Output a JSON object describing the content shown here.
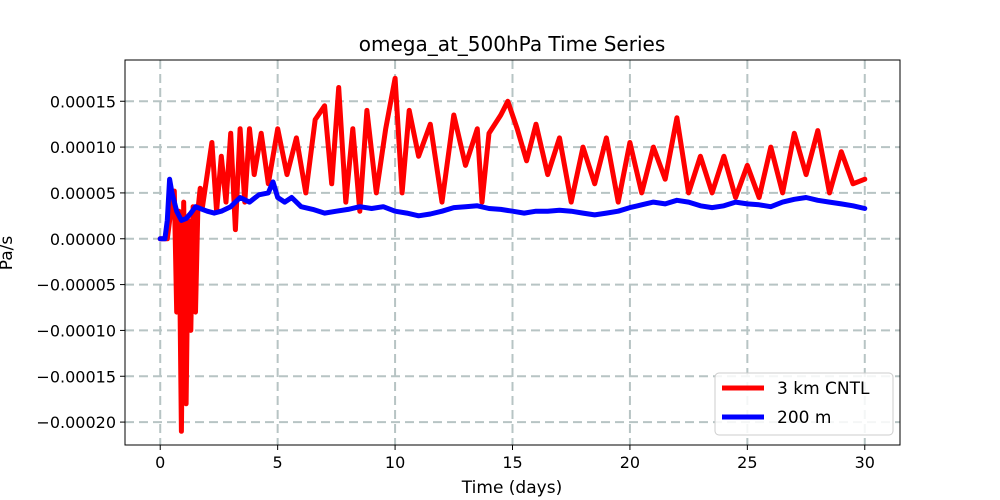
{
  "chart_data": {
    "type": "line",
    "title": "omega_at_500hPa Time Series",
    "xlabel": "Time (days)",
    "ylabel": "Pa/s",
    "xlim": [
      -1.5,
      31.5
    ],
    "ylim": [
      -0.000225,
      0.000195
    ],
    "grid": true,
    "legend_position": "lower-right",
    "x_ticks": [
      0,
      5,
      10,
      15,
      20,
      25,
      30
    ],
    "x_tick_labels": [
      "0",
      "5",
      "10",
      "15",
      "20",
      "25",
      "30"
    ],
    "y_ticks": [
      0.00015,
      0.0001,
      5e-05,
      0.0,
      -5e-05,
      -0.0001,
      -0.00015,
      -0.0002
    ],
    "y_tick_labels": [
      "0.00015",
      "0.00010",
      "0.00005",
      "0.00000",
      "−0.00005",
      "−0.00010",
      "−0.00015",
      "−0.00020"
    ],
    "series": [
      {
        "name": "3 km CNTL",
        "color": "#ff0000",
        "x": [
          0,
          0.3,
          0.5,
          0.6,
          0.7,
          0.8,
          0.9,
          1.0,
          1.1,
          1.2,
          1.3,
          1.4,
          1.5,
          1.6,
          1.7,
          1.8,
          2.0,
          2.2,
          2.4,
          2.6,
          2.8,
          3.0,
          3.2,
          3.4,
          3.6,
          3.8,
          4.0,
          4.3,
          4.6,
          5.0,
          5.4,
          5.8,
          6.2,
          6.6,
          7.0,
          7.3,
          7.6,
          7.9,
          8.2,
          8.5,
          8.8,
          9.2,
          9.6,
          10.0,
          10.3,
          10.6,
          11.0,
          11.5,
          12.0,
          12.5,
          13.0,
          13.5,
          13.7,
          14.0,
          14.5,
          14.8,
          15.2,
          15.6,
          16.0,
          16.5,
          17.0,
          17.5,
          18.0,
          18.5,
          19.0,
          19.5,
          20.0,
          20.5,
          21.0,
          21.5,
          22.0,
          22.5,
          23.0,
          23.5,
          24.0,
          24.5,
          25.0,
          25.5,
          26.0,
          26.5,
          27.0,
          27.5,
          28.0,
          28.5,
          29.0,
          29.5,
          30.0
        ],
        "values": [
          0.0,
          0.0,
          4e-05,
          5.2e-05,
          -8e-05,
          3e-05,
          -0.00021,
          4e-05,
          -0.00018,
          2e-05,
          -0.0001,
          3.5e-05,
          -8e-05,
          3e-05,
          5.5e-05,
          3.5e-05,
          7e-05,
          0.000105,
          3e-05,
          9e-05,
          4e-05,
          0.000115,
          1e-05,
          0.00012,
          4e-05,
          0.00012,
          7e-05,
          0.000115,
          6e-05,
          0.00012,
          7e-05,
          0.00011,
          5e-05,
          0.00013,
          0.000145,
          6e-05,
          0.000165,
          4e-05,
          0.00012,
          3e-05,
          0.00014,
          5e-05,
          0.00012,
          0.000175,
          5e-05,
          0.00014,
          9e-05,
          0.000125,
          4e-05,
          0.000135,
          8e-05,
          0.00012,
          4e-05,
          0.000115,
          0.000135,
          0.00015,
          0.00012,
          8.5e-05,
          0.000125,
          7e-05,
          0.00011,
          4e-05,
          0.0001,
          6e-05,
          0.00011,
          4e-05,
          0.000105,
          5e-05,
          0.0001,
          6.5e-05,
          0.000132,
          5e-05,
          9e-05,
          5e-05,
          9e-05,
          4.5e-05,
          8e-05,
          4.5e-05,
          0.0001,
          5e-05,
          0.000115,
          7e-05,
          0.000118,
          5e-05,
          9.5e-05,
          6e-05,
          6.5e-05
        ]
      },
      {
        "name": "200 m",
        "color": "#0000ff",
        "x": [
          0,
          0.2,
          0.3,
          0.4,
          0.5,
          0.7,
          0.9,
          1.1,
          1.3,
          1.5,
          1.8,
          2.0,
          2.3,
          2.6,
          3.0,
          3.4,
          3.8,
          4.2,
          4.6,
          4.8,
          5.0,
          5.3,
          5.6,
          6.0,
          6.5,
          7.0,
          7.5,
          8.0,
          8.5,
          9.0,
          9.5,
          10.0,
          10.5,
          11.0,
          11.5,
          12.0,
          12.5,
          13.0,
          13.5,
          14.0,
          14.5,
          15.0,
          15.5,
          16.0,
          16.5,
          17.0,
          17.5,
          18.0,
          18.5,
          19.0,
          19.5,
          20.0,
          20.5,
          21.0,
          21.5,
          22.0,
          22.5,
          23.0,
          23.5,
          24.0,
          24.5,
          25.0,
          25.5,
          26.0,
          26.5,
          27.0,
          27.5,
          28.0,
          28.5,
          29.0,
          29.5,
          30.0
        ],
        "values": [
          0.0,
          0.0,
          2e-05,
          6.5e-05,
          5e-05,
          3e-05,
          2e-05,
          2.2e-05,
          2.8e-05,
          3.5e-05,
          3.2e-05,
          3e-05,
          2.8e-05,
          3e-05,
          3.5e-05,
          4.5e-05,
          4e-05,
          4.8e-05,
          5e-05,
          6.2e-05,
          4.5e-05,
          4e-05,
          4.5e-05,
          3.5e-05,
          3.2e-05,
          2.8e-05,
          3e-05,
          3.2e-05,
          3.5e-05,
          3.3e-05,
          3.5e-05,
          3e-05,
          2.8e-05,
          2.5e-05,
          2.7e-05,
          3e-05,
          3.4e-05,
          3.5e-05,
          3.6e-05,
          3.3e-05,
          3.2e-05,
          3e-05,
          2.8e-05,
          3e-05,
          3e-05,
          3.1e-05,
          3e-05,
          2.8e-05,
          2.6e-05,
          2.8e-05,
          3e-05,
          3.4e-05,
          3.7e-05,
          4e-05,
          3.8e-05,
          4.2e-05,
          4e-05,
          3.6e-05,
          3.4e-05,
          3.6e-05,
          4e-05,
          3.8e-05,
          3.7e-05,
          3.5e-05,
          4e-05,
          4.3e-05,
          4.5e-05,
          4.2e-05,
          4e-05,
          3.8e-05,
          3.6e-05,
          3.3e-05
        ]
      }
    ]
  }
}
